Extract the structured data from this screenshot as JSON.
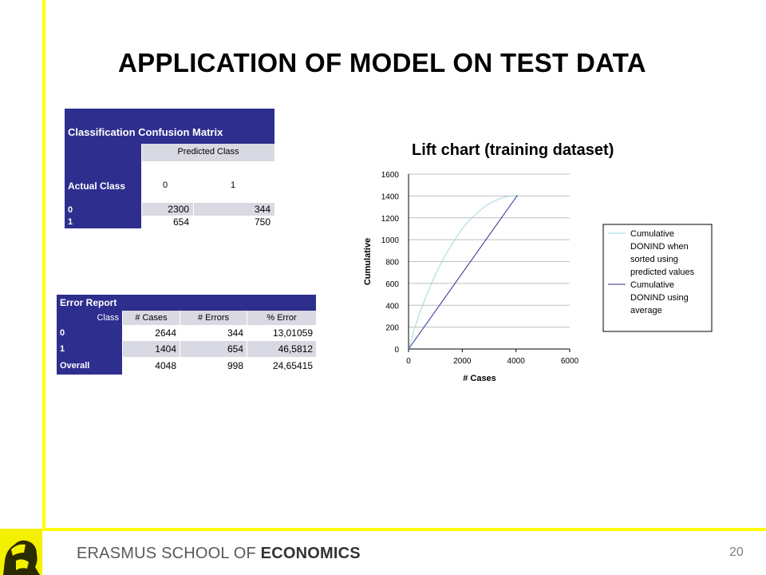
{
  "slide": {
    "title": "APPLICATION OF MODEL ON TEST DATA",
    "logo_text_regular": "ERASMUS SCHOOL OF ",
    "logo_text_bold": "ECONOMICS",
    "page_number": "20",
    "accent_yellow": "#ffff00",
    "table_blue": "#2e2e8f"
  },
  "confusion_matrix": {
    "title": "Classification Confusion Matrix",
    "predicted_header": "Predicted Class",
    "actual_header": "Actual Class",
    "pred_labels": [
      "0",
      "1"
    ],
    "rows": [
      {
        "label": "0",
        "values": [
          "2300",
          "344"
        ]
      },
      {
        "label": "1",
        "values": [
          "654",
          "750"
        ]
      }
    ]
  },
  "error_report": {
    "title": "Error Report",
    "headers": [
      "Class",
      "# Cases",
      "# Errors",
      "% Error"
    ],
    "rows": [
      {
        "label": "0",
        "cases": "2644",
        "errors": "344",
        "pct": "13,01059"
      },
      {
        "label": "1",
        "cases": "1404",
        "errors": "654",
        "pct": "46,5812"
      },
      {
        "label": "Overall",
        "cases": "4048",
        "errors": "998",
        "pct": "24,65415"
      }
    ]
  },
  "chart_data": {
    "type": "line",
    "title": "Lift chart (training dataset)",
    "xlabel": "# Cases",
    "ylabel": "Cumulative",
    "xlim": [
      0,
      6000
    ],
    "ylim": [
      0,
      1600
    ],
    "xticks": [
      0,
      2000,
      4000,
      6000
    ],
    "yticks": [
      0,
      200,
      400,
      600,
      800,
      1000,
      1200,
      1400,
      1600
    ],
    "grid": true,
    "legend_position": "right",
    "series": [
      {
        "name": "Cumulative DONIND when sorted using predicted values",
        "color": "#9ed8e0",
        "x": [
          0,
          200,
          400,
          600,
          800,
          1000,
          1200,
          1400,
          1600,
          1800,
          2000,
          2200,
          2400,
          2600,
          2800,
          3000,
          3200,
          3400,
          3600,
          3800,
          4048
        ],
        "y": [
          0,
          170,
          320,
          450,
          570,
          680,
          780,
          870,
          950,
          1030,
          1100,
          1160,
          1210,
          1255,
          1295,
          1330,
          1355,
          1375,
          1390,
          1400,
          1404
        ]
      },
      {
        "name": "Cumulative DONIND using average",
        "color": "#2e2e8f",
        "x": [
          0,
          4048
        ],
        "y": [
          0,
          1404
        ]
      }
    ],
    "legend_labels": [
      [
        "Cumulative",
        "DONIND when",
        "sorted using",
        "predicted values"
      ],
      [
        "Cumulative",
        "DONIND using",
        "average"
      ]
    ]
  }
}
